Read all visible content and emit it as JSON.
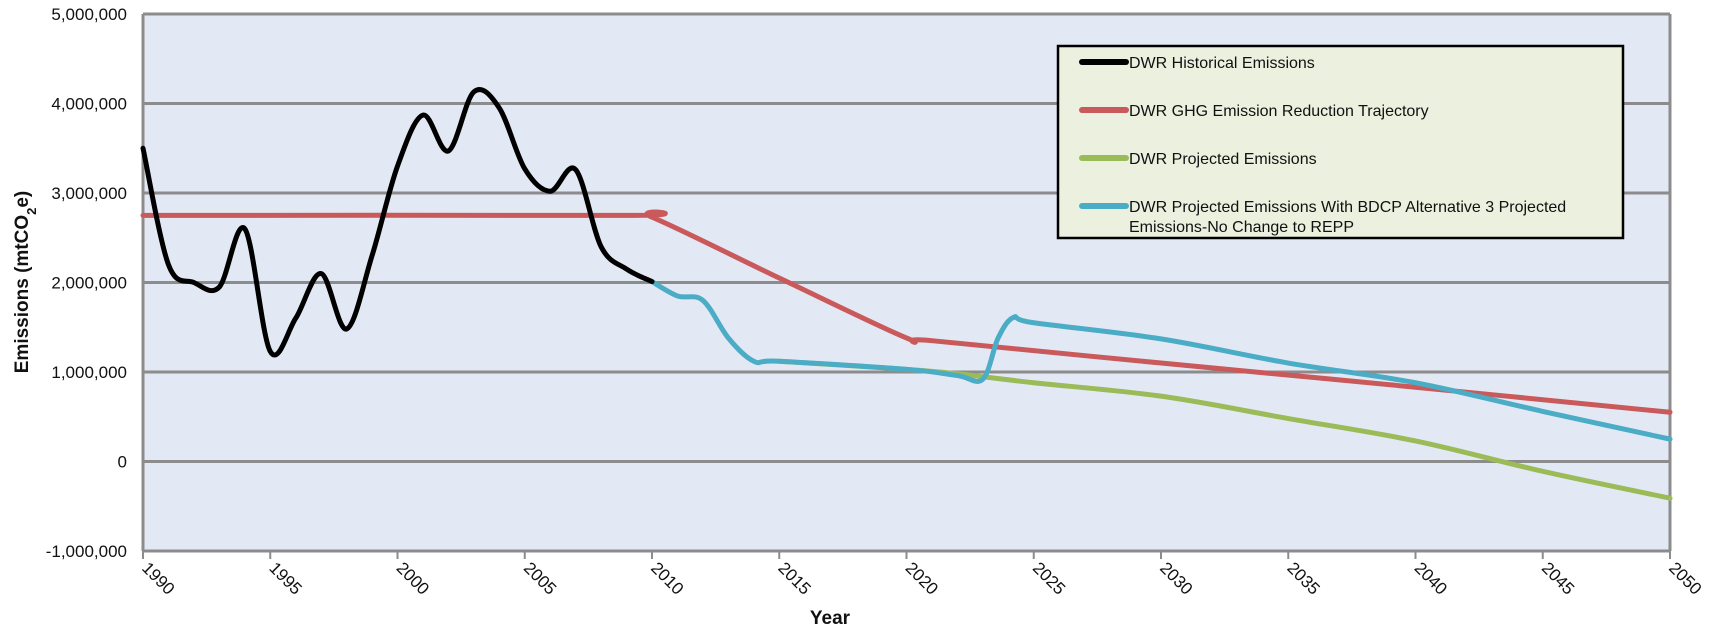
{
  "chart_data": {
    "type": "line",
    "title": "",
    "xlabel": "Year",
    "ylabel_parts": [
      "Emissions (mtCO",
      "2",
      "e)"
    ],
    "xlim": [
      1990,
      2050
    ],
    "ylim": [
      -1000000,
      5000000
    ],
    "x_ticks": [
      1990,
      1995,
      2000,
      2005,
      2010,
      2015,
      2020,
      2025,
      2030,
      2035,
      2040,
      2045,
      2050
    ],
    "y_ticks": [
      {
        "value": -1000000,
        "label": "-1,000,000"
      },
      {
        "value": 0,
        "label": "0"
      },
      {
        "value": 1000000,
        "label": "1,000,000"
      },
      {
        "value": 2000000,
        "label": "2,000,000"
      },
      {
        "value": 3000000,
        "label": "3,000,000"
      },
      {
        "value": 4000000,
        "label": "4,000,000"
      },
      {
        "value": 5000000,
        "label": "5,000,000"
      }
    ],
    "grid": "horizontal",
    "legend_position": "top-right",
    "colors": {
      "plot_background": "#e3e9f4",
      "grid": "#8c8c8c",
      "legend_background": "#ebf1de"
    },
    "series": [
      {
        "name": "DWR Historical Emissions",
        "color": "#000000",
        "x": [
          1990,
          1991,
          1992,
          1993,
          1994,
          1995,
          1996,
          1997,
          1998,
          1999,
          2000,
          2001,
          2002,
          2003,
          2004,
          2005,
          2006,
          2007,
          2008,
          2009,
          2010
        ],
        "y": [
          3500000,
          2200000,
          2000000,
          1950000,
          2600000,
          1230000,
          1600000,
          2100000,
          1480000,
          2300000,
          3300000,
          3870000,
          3470000,
          4130000,
          3950000,
          3270000,
          3020000,
          3260000,
          2400000,
          2150000,
          2010000
        ]
      },
      {
        "name": "DWR GHG Emission Reduction Trajectory",
        "color": "#c9595a",
        "x": [
          1990,
          2009,
          2010,
          2015,
          2020,
          2021,
          2030,
          2040,
          2050
        ],
        "y": [
          2750000,
          2750000,
          2730000,
          2050000,
          1380000,
          1350000,
          1100000,
          830000,
          550000
        ]
      },
      {
        "name": "DWR Projected Emissions",
        "color": "#9bbb59",
        "x": [
          2015,
          2020,
          2022,
          2025,
          2030,
          2035,
          2040,
          2045,
          2050
        ],
        "y": [
          1120000,
          1030000,
          980000,
          880000,
          730000,
          480000,
          230000,
          -110000,
          -410000
        ]
      },
      {
        "name": "DWR Projected Emissions With BDCP Alternative 3 Projected Emissions-No Change to REPP",
        "color": "#4bacc6",
        "x": [
          2010,
          2011,
          2012,
          2013,
          2014,
          2015,
          2020,
          2022,
          2023,
          2023.6,
          2024.2,
          2025,
          2030,
          2035,
          2040,
          2045,
          2050
        ],
        "y": [
          2010000,
          1850000,
          1800000,
          1380000,
          1120000,
          1120000,
          1030000,
          960000,
          920000,
          1380000,
          1610000,
          1550000,
          1370000,
          1100000,
          880000,
          560000,
          250000
        ]
      }
    ]
  }
}
